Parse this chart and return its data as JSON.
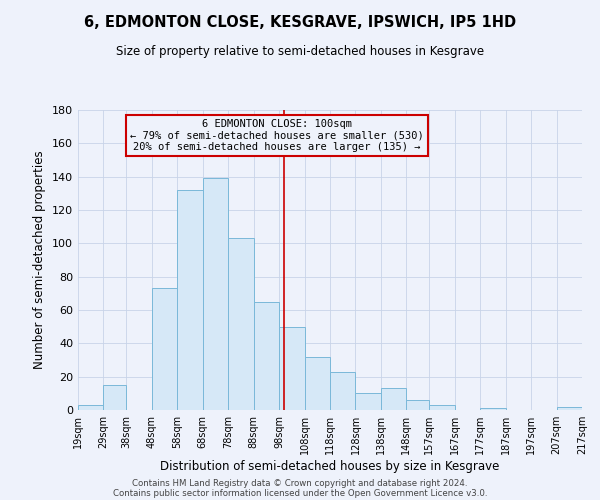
{
  "title": "6, EDMONTON CLOSE, KESGRAVE, IPSWICH, IP5 1HD",
  "subtitle": "Size of property relative to semi-detached houses in Kesgrave",
  "xlabel": "Distribution of semi-detached houses by size in Kesgrave",
  "ylabel": "Number of semi-detached properties",
  "bin_labels": [
    "19sqm",
    "29sqm",
    "38sqm",
    "48sqm",
    "58sqm",
    "68sqm",
    "78sqm",
    "88sqm",
    "98sqm",
    "108sqm",
    "118sqm",
    "128sqm",
    "138sqm",
    "148sqm",
    "157sqm",
    "167sqm",
    "177sqm",
    "187sqm",
    "197sqm",
    "207sqm",
    "217sqm"
  ],
  "bin_edges": [
    19,
    29,
    38,
    48,
    58,
    68,
    78,
    88,
    98,
    108,
    118,
    128,
    138,
    148,
    157,
    167,
    177,
    187,
    197,
    207,
    217
  ],
  "bar_heights": [
    3,
    15,
    0,
    73,
    132,
    139,
    103,
    65,
    50,
    32,
    23,
    10,
    13,
    6,
    3,
    0,
    1,
    0,
    0,
    2
  ],
  "bar_color": "#d6e8f7",
  "bar_edgecolor": "#7ab8d9",
  "property_size": 100,
  "vline_color": "#cc0000",
  "annotation_line1": "6 EDMONTON CLOSE: 100sqm",
  "annotation_line2": "← 79% of semi-detached houses are smaller (530)",
  "annotation_line3": "20% of semi-detached houses are larger (135) →",
  "annotation_box_edgecolor": "#cc0000",
  "ylim": [
    0,
    180
  ],
  "yticks": [
    0,
    20,
    40,
    60,
    80,
    100,
    120,
    140,
    160,
    180
  ],
  "grid_color": "#c8d4e8",
  "footer1": "Contains HM Land Registry data © Crown copyright and database right 2024.",
  "footer2": "Contains public sector information licensed under the Open Government Licence v3.0.",
  "bg_color": "#eef2fb"
}
